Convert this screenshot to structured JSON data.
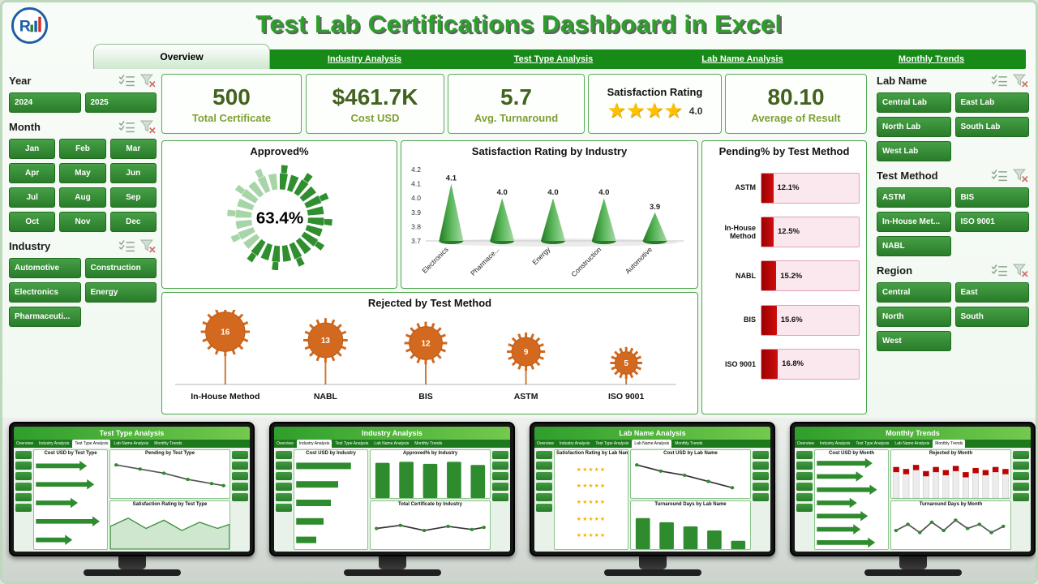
{
  "header": {
    "title": "Test Lab Certifications Dashboard in Excel",
    "logo_text": "R"
  },
  "tabs": [
    {
      "label": "Overview",
      "active": true
    },
    {
      "label": "Industry Analysis",
      "active": false
    },
    {
      "label": "Test Type Analysis",
      "active": false
    },
    {
      "label": "Lab Name Analysis",
      "active": false
    },
    {
      "label": "Monthly Trends",
      "active": false
    }
  ],
  "slicers": {
    "year": {
      "title": "Year",
      "items": [
        "2024",
        "2025"
      ]
    },
    "month": {
      "title": "Month",
      "items": [
        "Jan",
        "Feb",
        "Mar",
        "Apr",
        "May",
        "Jun",
        "Jul",
        "Aug",
        "Sep",
        "Oct",
        "Nov",
        "Dec"
      ]
    },
    "industry": {
      "title": "Industry",
      "items": [
        "Automotive",
        "Construction",
        "Electronics",
        "Energy",
        "Pharmaceuti..."
      ]
    },
    "lab_name": {
      "title": "Lab Name",
      "items": [
        "Central Lab",
        "East Lab",
        "North Lab",
        "South Lab",
        "West Lab"
      ]
    },
    "test_method": {
      "title": "Test Method",
      "items": [
        "ASTM",
        "BIS",
        "In-House Met...",
        "ISO 9001",
        "NABL"
      ]
    },
    "region": {
      "title": "Region",
      "items": [
        "Central",
        "East",
        "North",
        "South",
        "West"
      ]
    }
  },
  "kpis": [
    {
      "value": "500",
      "label": "Total Certificate"
    },
    {
      "value": "$461.7K",
      "label": "Cost USD"
    },
    {
      "value": "5.7",
      "label": "Avg. Turnaround"
    }
  ],
  "satisfaction": {
    "title": "Satisfaction Rating",
    "stars": 4,
    "value": "4.0"
  },
  "avg_result": {
    "value": "80.10",
    "label": "Average of Result"
  },
  "chart_data": [
    {
      "id": "approved",
      "type": "donut",
      "title": "Approved%",
      "value": 63.4,
      "label": "63.4%",
      "colors": {
        "filled": "#2f8f2f",
        "rest": "#a8d5a8"
      }
    },
    {
      "id": "satisfaction_by_industry",
      "type": "cone",
      "title": "Satisfaction Rating by Industry",
      "categories": [
        "Electronics",
        "Pharmace...",
        "Energy",
        "Construction",
        "Automotive"
      ],
      "values": [
        4.1,
        4.0,
        4.0,
        4.0,
        3.9
      ],
      "ylim": [
        3.7,
        4.2
      ],
      "yticks": [
        3.7,
        3.8,
        3.9,
        4.0,
        4.1,
        4.2
      ]
    },
    {
      "id": "pending_by_test_method",
      "type": "hbar",
      "title": "Pending% by Test Method",
      "categories": [
        "ASTM",
        "In-House Method",
        "NABL",
        "BIS",
        "ISO 9001"
      ],
      "values": [
        12.1,
        12.5,
        15.2,
        15.6,
        16.8
      ],
      "labels": [
        "12.1%",
        "12.5%",
        "15.2%",
        "15.6%",
        "16.8%"
      ],
      "bar_color": "#c00000"
    },
    {
      "id": "rejected_by_test_method",
      "type": "lollipop",
      "title": "Rejected by Test Method",
      "categories": [
        "In-House Method",
        "NABL",
        "BIS",
        "ASTM",
        "ISO 9001"
      ],
      "values": [
        16,
        13,
        12,
        9,
        5
      ],
      "marker_color": "#d2691e"
    }
  ],
  "monitors": [
    {
      "title": "Test Type Analysis",
      "charts": [
        "Cost USD by Test Type",
        "Pending by Test Type",
        "Satisfaction Rating by Test Type"
      ]
    },
    {
      "title": "Industry Analysis",
      "charts": [
        "Cost USD by Industry",
        "Approved% by Industry",
        "Total Certificate by Industry"
      ]
    },
    {
      "title": "Lab Name Analysis",
      "charts": [
        "Satisfaction Rating by Lab Name",
        "Cost USD by Lab Name",
        "Turnaround Days by Lab Name"
      ]
    },
    {
      "title": "Monthly Trends",
      "charts": [
        "Cost USD by Month",
        "Rejected by Month",
        "Turnaround Days by Month"
      ]
    }
  ],
  "colors": {
    "accent_green": "#2e8b2e",
    "tab_green": "#178a17",
    "gold": "#ffc000",
    "red": "#c00000",
    "orange": "#d2691e"
  }
}
